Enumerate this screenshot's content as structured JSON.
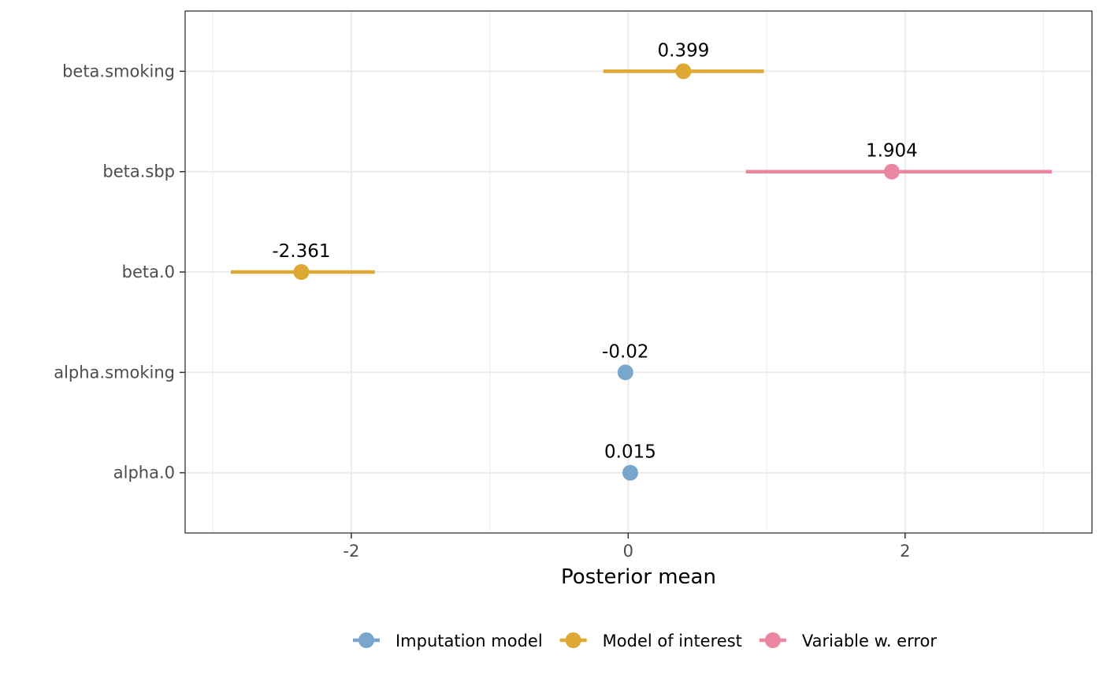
{
  "chart_data": {
    "type": "dot-interval",
    "xlabel": "Posterior mean",
    "ylabel": "",
    "xlim": [
      -3.2,
      3.35
    ],
    "x_ticks": [
      -2,
      0,
      2
    ],
    "x_tick_labels": [
      "-2",
      "0",
      "2"
    ],
    "x_minor_ticks": [
      -3,
      -1,
      1,
      3
    ],
    "grid": true,
    "legend_position": "bottom",
    "categories": [
      "beta.smoking",
      "beta.sbp",
      "beta.0",
      "alpha.smoking",
      "alpha.0"
    ],
    "series": [
      {
        "name": "Imputation model",
        "color": "#7ba6cb"
      },
      {
        "name": "Model of interest",
        "color": "#dda934"
      },
      {
        "name": "Variable w. error",
        "color": "#ea869f"
      }
    ],
    "points": [
      {
        "category": "beta.smoking",
        "group": "Model of interest",
        "mean": 0.399,
        "lower": -0.18,
        "upper": 0.98,
        "label": "0.399"
      },
      {
        "category": "beta.sbp",
        "group": "Variable w. error",
        "mean": 1.904,
        "lower": 0.85,
        "upper": 3.06,
        "label": "1.904"
      },
      {
        "category": "beta.0",
        "group": "Model of interest",
        "mean": -2.361,
        "lower": -2.87,
        "upper": -1.83,
        "label": "-2.361"
      },
      {
        "category": "alpha.smoking",
        "group": "Imputation model",
        "mean": -0.02,
        "lower": -0.02,
        "upper": -0.02,
        "label": "-0.02"
      },
      {
        "category": "alpha.0",
        "group": "Imputation model",
        "mean": 0.015,
        "lower": 0.015,
        "upper": 0.015,
        "label": "0.015"
      }
    ]
  }
}
